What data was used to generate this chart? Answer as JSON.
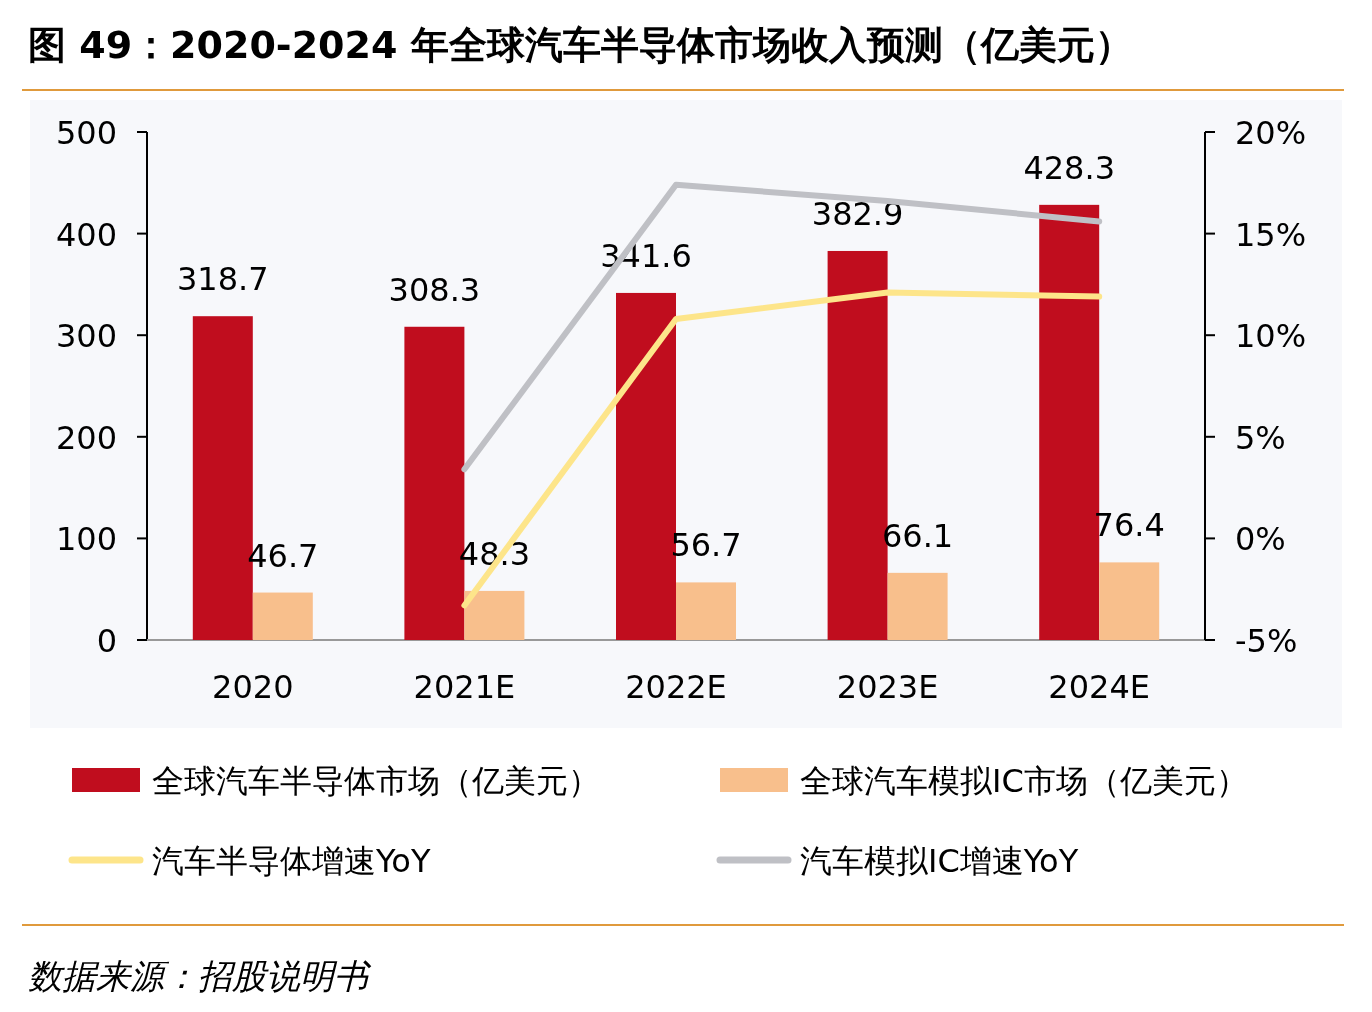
{
  "chart_data": {
    "type": "bar",
    "title": "图 49：2020-2024 年全球汽车半导体市场收入预测（亿美元）",
    "categories": [
      "2020",
      "2021E",
      "2022E",
      "2023E",
      "2024E"
    ],
    "series": [
      {
        "name": "全球汽车半导体市场（亿美元）",
        "color": "#c00d1e",
        "values": [
          318.7,
          308.3,
          341.6,
          382.9,
          428.3
        ],
        "value_labels": [
          "318.7",
          "308.3",
          "341.6",
          "382.9",
          "428.3"
        ]
      },
      {
        "name": "全球汽车模拟IC市场（亿美元）",
        "color": "#f8bf8c",
        "values": [
          46.7,
          48.3,
          56.7,
          66.1,
          76.4
        ],
        "value_labels": [
          "46.7",
          "48.3",
          "56.7",
          "66.1",
          "76.4"
        ]
      },
      {
        "name": "汽车半导体增速YoY",
        "type": "line",
        "axis": "y2",
        "color": "#fde58a",
        "values": [
          null,
          -3.3,
          10.8,
          12.1,
          11.9
        ]
      },
      {
        "name": "汽车模拟IC增速YoY",
        "type": "line",
        "axis": "y2",
        "color": "#bfc0c5",
        "values": [
          null,
          3.4,
          17.4,
          16.6,
          15.6
        ]
      }
    ],
    "ylim": [
      0,
      500
    ],
    "yticks": [
      0,
      100,
      200,
      300,
      400,
      500
    ],
    "y2lim": [
      -5,
      20
    ],
    "y2ticks": [
      {
        "value": -5,
        "label": "-5%"
      },
      {
        "value": 0,
        "label": "0%"
      },
      {
        "value": 5,
        "label": "5%"
      },
      {
        "value": 10,
        "label": "10%"
      },
      {
        "value": 15,
        "label": "15%"
      },
      {
        "value": 20,
        "label": "20%"
      }
    ],
    "legend": "bottom",
    "grid": false,
    "annotations": [
      "数据来源：招股说明书"
    ]
  }
}
